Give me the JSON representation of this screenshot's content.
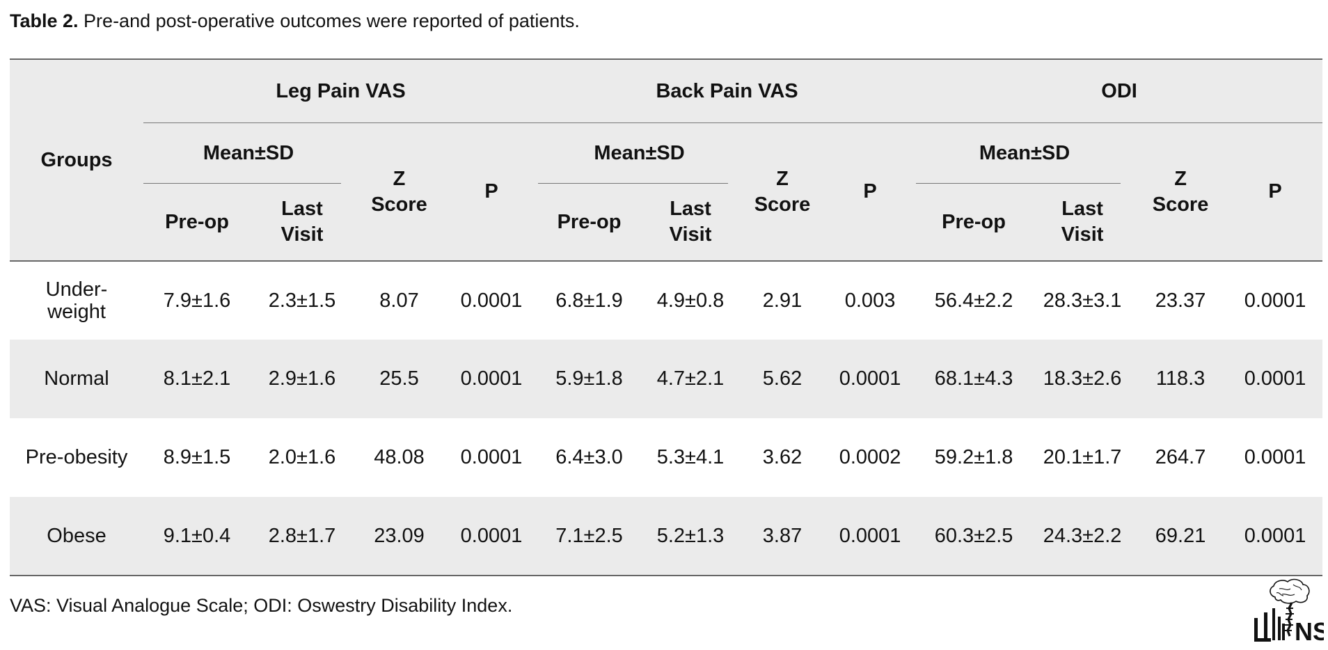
{
  "caption": {
    "label": "Table 2.",
    "text": " Pre-and post-operative outcomes were reported of patients."
  },
  "table": {
    "groups_header": "Groups",
    "measures": [
      "Leg Pain VAS",
      "Back Pain VAS",
      "ODI"
    ],
    "mean_sd_header": "Mean±SD",
    "z_score_header": "Z Score",
    "p_header": "P",
    "pre_op_header": "Pre-op",
    "last_visit_header": "Last Visit",
    "rows": [
      {
        "group": "Under-weight",
        "values": [
          "7.9±1.6",
          "2.3±1.5",
          "8.07",
          "0.0001",
          "6.8±1.9",
          "4.9±0.8",
          "2.91",
          "0.003",
          "56.4±2.2",
          "28.3±3.1",
          "23.37",
          "0.0001"
        ]
      },
      {
        "group": "Normal",
        "values": [
          "8.1±2.1",
          "2.9±1.6",
          "25.5",
          "0.0001",
          "5.9±1.8",
          "4.7±2.1",
          "5.62",
          "0.0001",
          "68.1±4.3",
          "18.3±2.6",
          "118.3",
          "0.0001"
        ]
      },
      {
        "group": "Pre-obesity",
        "values": [
          "8.9±1.5",
          "2.0±1.6",
          "48.08",
          "0.0001",
          "6.4±3.0",
          "5.3±4.1",
          "3.62",
          "0.0002",
          "59.2±1.8",
          "20.1±1.7",
          "264.7",
          "0.0001"
        ]
      },
      {
        "group": "Obese",
        "values": [
          "9.1±0.4",
          "2.8±1.7",
          "23.09",
          "0.0001",
          "7.1±2.5",
          "5.2±1.3",
          "3.87",
          "0.0001",
          "60.3±2.5",
          "24.3±2.2",
          "69.21",
          "0.0001"
        ]
      }
    ]
  },
  "footnote": "VAS: Visual Analogue Scale; ODI: Oswestry Disability Index.",
  "logo": {
    "icon": "brain-spine-logo-icon",
    "text": "NS"
  }
}
